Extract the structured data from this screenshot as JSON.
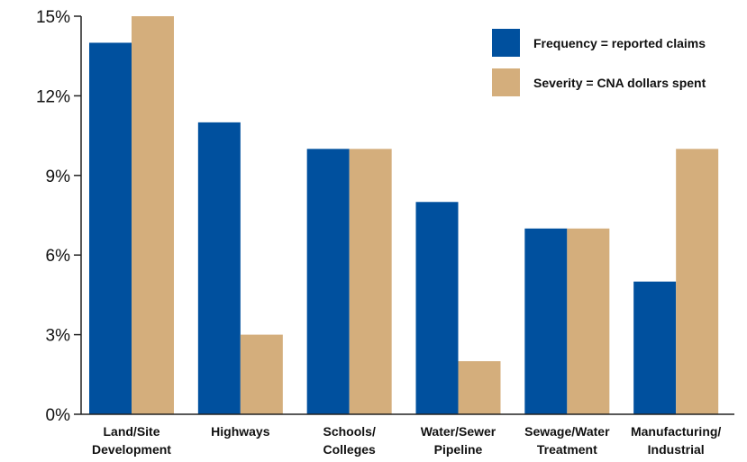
{
  "chart_data": {
    "type": "bar",
    "categories": [
      [
        "Land/Site",
        "Development"
      ],
      [
        "Highways"
      ],
      [
        "Schools/",
        "Colleges"
      ],
      [
        "Water/Sewer",
        "Pipeline"
      ],
      [
        "Sewage/Water",
        "Treatment"
      ],
      [
        "Manufacturing/",
        "Industrial"
      ]
    ],
    "series": [
      {
        "name": "Frequency = reported claims",
        "color": "#00509e",
        "values": [
          14,
          11,
          10,
          8,
          7,
          5
        ]
      },
      {
        "name": "Severity = CNA dollars spent",
        "color": "#d4ae7c",
        "values": [
          15,
          3,
          10,
          2,
          7,
          10
        ]
      }
    ],
    "y_ticks": [
      {
        "value": 0,
        "label": "0%"
      },
      {
        "value": 3,
        "label": "3%"
      },
      {
        "value": 6,
        "label": "6%"
      },
      {
        "value": 9,
        "label": "9%"
      },
      {
        "value": 12,
        "label": "12%"
      },
      {
        "value": 15,
        "label": "15%"
      }
    ],
    "ylim": [
      0,
      15
    ],
    "title": "",
    "xlabel": "",
    "ylabel": "",
    "grid": false,
    "legend_position": "top-right"
  }
}
